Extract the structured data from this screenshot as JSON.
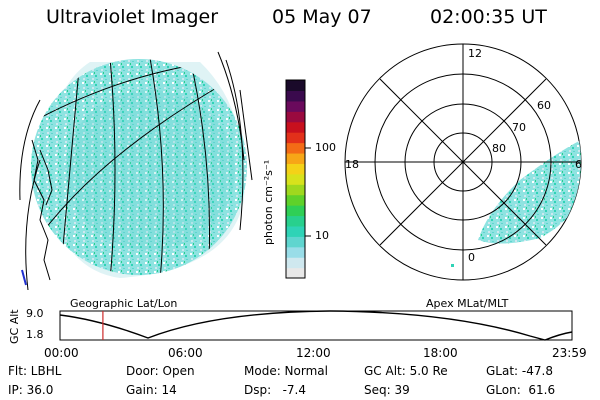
{
  "header": {
    "instrument": "Ultraviolet Imager",
    "date": "05 May 07",
    "time": "02:00:35 UT"
  },
  "panels": {
    "left_label": "Geographic Lat/Lon",
    "right_label": "Apex MLat/MLT"
  },
  "colorbar": {
    "label": "photon cm⁻²s⁻¹",
    "ticks": [
      "100",
      "10"
    ],
    "colors": [
      "#e8e8e8",
      "#cfe8ef",
      "#99dde8",
      "#5fd5cf",
      "#2fd3b6",
      "#28d08d",
      "#2fcf55",
      "#5fd12a",
      "#9fd81e",
      "#d8e21c",
      "#f4d218",
      "#f7a617",
      "#f36b16",
      "#e2301a",
      "#c8101e",
      "#9a0a3f",
      "#6a0a5c",
      "#3a0a4d",
      "#1a0a2a"
    ]
  },
  "polar": {
    "mlt_labels": [
      "12",
      "18",
      "6",
      "0"
    ],
    "lat_labels": [
      "60",
      "70",
      "80"
    ]
  },
  "altitude_plot": {
    "ylabel": "GC Alt",
    "yticks": [
      "9.0",
      "1.8"
    ],
    "xticks": [
      "00:00",
      "06:00",
      "12:00",
      "18:00",
      "23:59"
    ],
    "current_time_hours": 2.01
  },
  "info": {
    "row1": [
      "Flt: LBHL",
      "Door: Open",
      "Mode: Normal",
      "GC Alt: 5.0 Re",
      "GLat: -47.8"
    ],
    "row2": [
      "IP: 36.0",
      "Gain: 14",
      "Dsp:   -7.4",
      "Seq: 39",
      "GLon:  61.6"
    ]
  }
}
